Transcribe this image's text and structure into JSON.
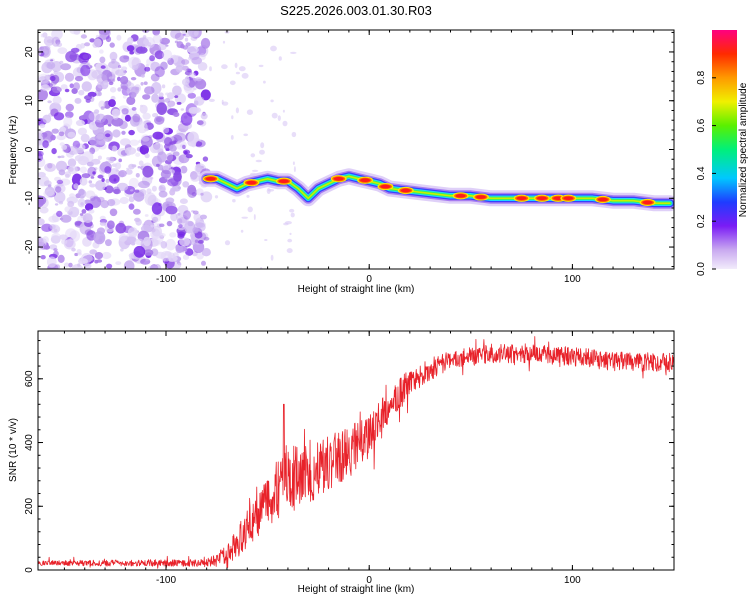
{
  "title": "S225.2026.003.01.30.R03",
  "chart_data": [
    {
      "type": "heatmap",
      "name": "spectrogram",
      "xlabel": "Height of straight line (km)",
      "ylabel": "Frequency (Hz)",
      "xlim": [
        -163,
        150
      ],
      "ylim": [
        -24.5,
        24.5
      ],
      "xticks": [
        -100,
        0,
        100
      ],
      "xtick_labels": [
        "-100",
        "0",
        "100"
      ],
      "yticks": [
        20,
        10,
        0,
        -10,
        -20
      ],
      "ytick_labels": [
        "20",
        "10",
        "0",
        "-10",
        "-20"
      ],
      "noise_region_x": [
        -163,
        -80
      ],
      "ridge": {
        "x": [
          -80,
          -75,
          -70,
          -65,
          -60,
          -55,
          -50,
          -45,
          -40,
          -35,
          -30,
          -25,
          -20,
          -15,
          -10,
          -5,
          0,
          5,
          10,
          20,
          30,
          40,
          50,
          60,
          70,
          80,
          90,
          100,
          110,
          120,
          130,
          140,
          148
        ],
        "y": [
          -6,
          -6,
          -7,
          -8,
          -7,
          -6.5,
          -6,
          -6.5,
          -6.5,
          -8,
          -10,
          -8,
          -7,
          -6,
          -5.5,
          -6,
          -6.5,
          -7,
          -8,
          -8.5,
          -9,
          -9.5,
          -9.5,
          -10,
          -10,
          -10,
          -10,
          -10,
          -10,
          -10.5,
          -10.5,
          -11,
          -11
        ]
      },
      "hotspots_x": [
        -78,
        -58,
        -42,
        -15,
        -2,
        8,
        18,
        45,
        55,
        75,
        85,
        93,
        98,
        115,
        137
      ],
      "colorbar": {
        "label": "Normalized spectral amplitude",
        "ticks": [
          0.0,
          0.2,
          0.4,
          0.6,
          0.8
        ],
        "tick_labels": [
          "0.0",
          "0.2",
          "0.4",
          "0.6",
          "0.8"
        ],
        "range": [
          0,
          1
        ]
      }
    },
    {
      "type": "line",
      "name": "snr",
      "xlabel": "Height of straight line (km)",
      "ylabel": "SNR (10 * v/v)",
      "xlim": [
        -163,
        150
      ],
      "ylim": [
        0,
        750
      ],
      "xticks": [
        -100,
        0,
        100
      ],
      "xtick_labels": [
        "-100",
        "0",
        "100"
      ],
      "yticks": [
        0,
        200,
        400,
        600
      ],
      "ytick_labels": [
        "0",
        "200",
        "400",
        "600"
      ],
      "series_color": "#e8222a",
      "trend": {
        "x": [
          -163,
          -80,
          -70,
          -60,
          -50,
          -40,
          -30,
          -20,
          -10,
          0,
          10,
          20,
          30,
          40,
          60,
          80,
          100,
          120,
          150
        ],
        "y": [
          22,
          22,
          40,
          130,
          220,
          290,
          300,
          340,
          370,
          420,
          520,
          590,
          630,
          660,
          680,
          680,
          670,
          655,
          650
        ]
      },
      "noise_amplitude": {
        "x": [
          -163,
          -80,
          -60,
          -40,
          -20,
          0,
          20,
          40,
          150
        ],
        "y": [
          8,
          12,
          60,
          110,
          90,
          70,
          40,
          30,
          30
        ]
      },
      "notable_peak": {
        "x": -42,
        "y": 520
      }
    }
  ]
}
